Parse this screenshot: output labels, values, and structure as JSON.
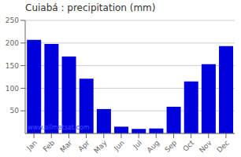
{
  "chart_data": {
    "type": "bar",
    "title": "Cuiabá : precipitation (mm)",
    "categories": [
      "Jan",
      "Feb",
      "Mar",
      "Apr",
      "May",
      "Jun",
      "Jul",
      "Aug",
      "Sep",
      "Oct",
      "Nov",
      "Dec"
    ],
    "values": [
      207,
      198,
      170,
      121,
      54,
      15,
      10,
      11,
      59,
      115,
      153,
      193
    ],
    "color": "#0000dd",
    "ylim": [
      0,
      250
    ],
    "yticks": [
      50,
      100,
      150,
      200,
      250
    ],
    "grid": true,
    "annotations": [
      {
        "text": "www.allmetsat.com",
        "color": "#4444ff"
      }
    ]
  }
}
